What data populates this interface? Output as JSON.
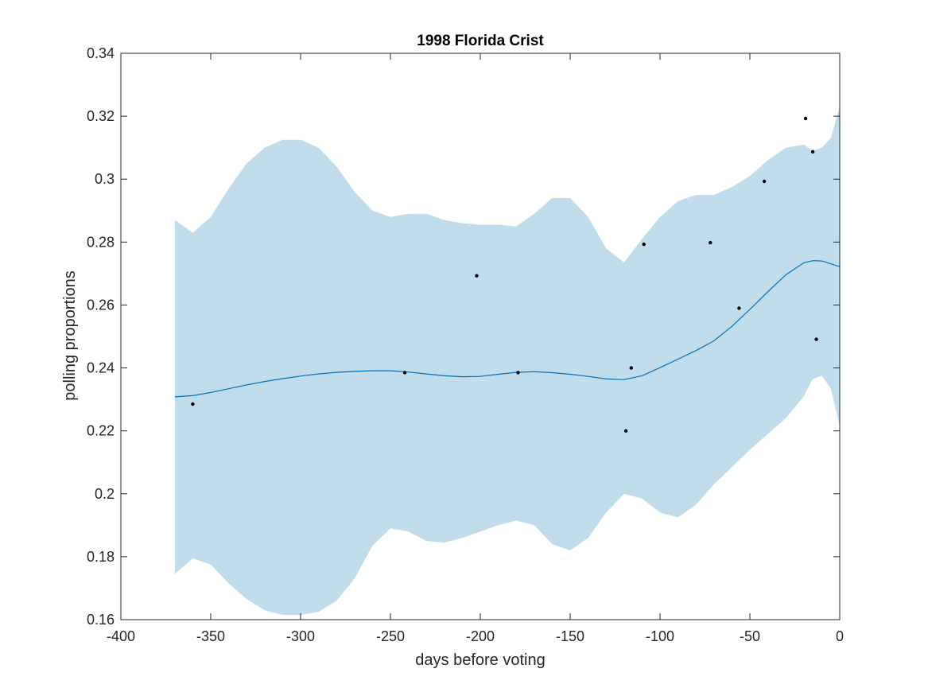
{
  "chart_data": {
    "type": "line",
    "title": "1998 Florida Crist",
    "xlabel": "days before voting",
    "ylabel": "polling proportions",
    "xlim": [
      -400,
      0
    ],
    "ylim": [
      0.16,
      0.34
    ],
    "xticks": [
      -400,
      -350,
      -300,
      -250,
      -200,
      -150,
      -100,
      -50,
      0
    ],
    "xtick_labels": [
      "-400",
      "-350",
      "-300",
      "-250",
      "-200",
      "-150",
      "-100",
      "-50",
      "0"
    ],
    "yticks": [
      0.16,
      0.18,
      0.2,
      0.22,
      0.24,
      0.26,
      0.28,
      0.3,
      0.32,
      0.34
    ],
    "ytick_labels": [
      "0.16",
      "0.18",
      "0.2",
      "0.22",
      "0.24",
      "0.26",
      "0.28",
      "0.3",
      "0.32",
      "0.34"
    ],
    "grid": false,
    "colors": {
      "band": "#c1dcea",
      "line": "#0072bd",
      "points": "#000000",
      "axes": "#262626"
    },
    "band": {
      "x": [
        -370,
        -360,
        -350,
        -340,
        -330,
        -320,
        -310,
        -300,
        -290,
        -280,
        -270,
        -260,
        -250,
        -240,
        -230,
        -220,
        -210,
        -200,
        -190,
        -180,
        -170,
        -160,
        -150,
        -140,
        -130,
        -120,
        -110,
        -100,
        -90,
        -80,
        -70,
        -60,
        -50,
        -40,
        -30,
        -20,
        -15,
        -10,
        -5,
        0
      ],
      "upper": [
        0.287,
        0.283,
        0.288,
        0.297,
        0.305,
        0.31,
        0.3125,
        0.3125,
        0.31,
        0.304,
        0.296,
        0.29,
        0.288,
        0.289,
        0.289,
        0.287,
        0.286,
        0.2855,
        0.2855,
        0.285,
        0.289,
        0.294,
        0.294,
        0.288,
        0.278,
        0.2735,
        0.281,
        0.288,
        0.293,
        0.295,
        0.295,
        0.2975,
        0.301,
        0.306,
        0.31,
        0.311,
        0.309,
        0.31,
        0.313,
        0.323
      ],
      "lower": [
        0.1745,
        0.1795,
        0.1775,
        0.1715,
        0.1665,
        0.163,
        0.1615,
        0.1615,
        0.1625,
        0.166,
        0.173,
        0.1835,
        0.189,
        0.188,
        0.185,
        0.1845,
        0.186,
        0.188,
        0.19,
        0.1915,
        0.19,
        0.184,
        0.182,
        0.186,
        0.194,
        0.2,
        0.1985,
        0.194,
        0.1925,
        0.1965,
        0.203,
        0.2085,
        0.214,
        0.219,
        0.224,
        0.231,
        0.2365,
        0.2375,
        0.2335,
        0.2215
      ]
    },
    "series": [
      {
        "type": "line",
        "x": [
          -370,
          -360,
          -350,
          -340,
          -330,
          -320,
          -310,
          -300,
          -290,
          -280,
          -270,
          -260,
          -250,
          -240,
          -230,
          -220,
          -210,
          -200,
          -190,
          -180,
          -170,
          -160,
          -150,
          -140,
          -130,
          -120,
          -110,
          -100,
          -90,
          -80,
          -70,
          -60,
          -50,
          -40,
          -30,
          -20,
          -15,
          -10,
          -5,
          0
        ],
        "y": [
          0.2308,
          0.2312,
          0.2322,
          0.2334,
          0.2346,
          0.2357,
          0.2366,
          0.2374,
          0.2381,
          0.2386,
          0.2389,
          0.2391,
          0.2391,
          0.2387,
          0.2381,
          0.2375,
          0.2372,
          0.2373,
          0.238,
          0.2386,
          0.2388,
          0.2385,
          0.238,
          0.2373,
          0.2365,
          0.2363,
          0.2375,
          0.2401,
          0.2428,
          0.2455,
          0.2486,
          0.2532,
          0.2586,
          0.2642,
          0.2696,
          0.2734,
          0.2741,
          0.274,
          0.2731,
          0.2722
        ]
      },
      {
        "type": "scatter",
        "x": [
          -360,
          -242,
          -202,
          -179,
          -119,
          -116,
          -109,
          -72,
          -56,
          -42,
          -19,
          -15,
          -13
        ],
        "y": [
          0.2285,
          0.2385,
          0.2693,
          0.2385,
          0.22,
          0.24,
          0.2793,
          0.2798,
          0.259,
          0.2993,
          0.3193,
          0.3087,
          0.2491
        ]
      }
    ]
  }
}
